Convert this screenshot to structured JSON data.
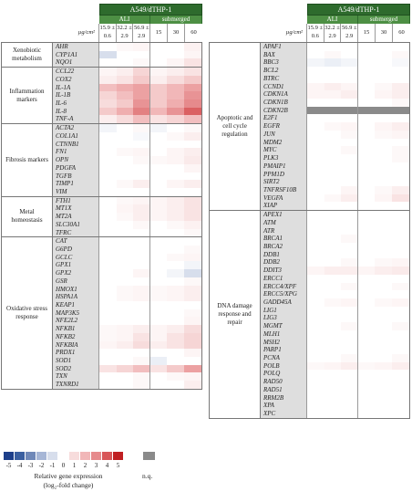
{
  "header": {
    "cell_line": "A549/dTHP-1",
    "ali_label": "ALI",
    "submerged_label": "submerged",
    "unit_label": "µg/cm²",
    "doses": [
      "15.9 ± 0.6",
      "32.2 ± 2.9",
      "56.9 ± 2.9",
      "15",
      "30",
      "60"
    ]
  },
  "colors": {
    "neg5": "#1d3f8a",
    "neg4": "#3a5fa0",
    "neg3": "#6f88b8",
    "neg2": "#a6b6d6",
    "neg1": "#d7deec",
    "zero": "#ffffff",
    "pos1": "#f7dcdc",
    "pos2": "#f1b7b8",
    "pos3": "#e68a8c",
    "pos4": "#d85658",
    "pos5": "#c01f22",
    "nq": "#8a8a8a"
  },
  "left_groups": [
    {
      "label": "Xenobiotic metabolism",
      "genes": [
        "AHR",
        "CYP1A1",
        "NQO1"
      ],
      "values": [
        [
          0,
          0.2,
          0.3,
          0,
          0,
          0.4
        ],
        [
          -1,
          0,
          0,
          0,
          0,
          0.3
        ],
        [
          0,
          0,
          0.2,
          0,
          0.3,
          0.8
        ]
      ]
    },
    {
      "label": "Inflammation markers",
      "genes": [
        "CCL22",
        "COX2",
        "IL-1A",
        "IL-1B",
        "IL-6",
        "IL-8",
        "TNF-A"
      ],
      "values": [
        [
          0.3,
          0.5,
          1.2,
          0.3,
          0.5,
          0.8
        ],
        [
          0.5,
          0.8,
          1.5,
          0.5,
          1,
          1.5
        ],
        [
          1.8,
          2.2,
          2.5,
          1.5,
          2,
          2.5
        ],
        [
          1.2,
          1.8,
          2.5,
          1.5,
          2,
          2.8
        ],
        [
          1,
          1.5,
          2.8,
          1.5,
          2.2,
          3
        ],
        [
          1.5,
          2.2,
          3.2,
          2,
          2.8,
          3.8
        ],
        [
          0.5,
          1,
          1.8,
          0.8,
          1.2,
          1.8
        ]
      ]
    },
    {
      "label": "Fibrosis markers",
      "genes": [
        "ACTA2",
        "COL1A1",
        "CTNNB1",
        "FN1",
        "OPN",
        "PDGFA",
        "TGFB",
        "TIMP1",
        "VIM"
      ],
      "values": [
        [
          -0.3,
          0,
          0.2,
          -0.3,
          0,
          0.2
        ],
        [
          0,
          0,
          -0.2,
          0,
          0.2,
          0.5
        ],
        [
          0,
          0,
          0,
          0,
          0,
          0
        ],
        [
          0,
          0.2,
          0.3,
          0,
          0.3,
          0.5
        ],
        [
          0,
          0,
          0.2,
          0.2,
          0.3,
          0.6
        ],
        [
          0,
          0,
          0,
          0,
          0,
          0.3
        ],
        [
          0,
          0,
          0,
          0,
          0,
          0
        ],
        [
          0,
          0.2,
          0.5,
          0,
          0.3,
          0.5
        ],
        [
          0,
          0,
          0,
          0,
          0,
          0
        ]
      ]
    },
    {
      "label": "Metal homeostasis",
      "genes": [
        "FTH1",
        "MT1X",
        "MT2A",
        "SLC30A1",
        "TFRC"
      ],
      "values": [
        [
          0,
          0.2,
          0.3,
          0.3,
          0.5,
          0.8
        ],
        [
          0,
          0.3,
          0.5,
          0.3,
          0.5,
          0.8
        ],
        [
          0,
          0.2,
          0.5,
          0.3,
          0.5,
          0.8
        ],
        [
          0,
          0,
          0.2,
          0,
          0.2,
          0.4
        ],
        [
          0,
          0,
          0,
          0,
          0,
          0.2
        ]
      ]
    },
    {
      "label": "Oxidative stress response",
      "genes": [
        "CAT",
        "G6PD",
        "GCLC",
        "GPX1",
        "GPX2",
        "GSR",
        "HMOX1",
        "HSPA1A",
        "KEAP1",
        "MAP3K5",
        "NFE2L2",
        "NFKB1",
        "NFKB2",
        "NFKBIA",
        "PRDX1",
        "SOD1",
        "SOD2",
        "TXN",
        "TXNRD1"
      ],
      "values": [
        [
          0,
          0,
          0,
          0,
          0,
          0
        ],
        [
          0,
          0,
          0,
          0,
          0,
          0.2
        ],
        [
          0,
          0,
          0,
          0,
          0.2,
          0.3
        ],
        [
          0,
          0,
          0,
          0,
          0,
          -0.3
        ],
        [
          0,
          0,
          0.3,
          0,
          -0.3,
          -1
        ],
        [
          0,
          0,
          0,
          0,
          0,
          0.2
        ],
        [
          0,
          0.2,
          0.3,
          0.2,
          0.3,
          0.5
        ],
        [
          0,
          0.2,
          0.3,
          0.2,
          0.3,
          0.5
        ],
        [
          0,
          0,
          0,
          0,
          0,
          0
        ],
        [
          0,
          0,
          0,
          0,
          0,
          0.2
        ],
        [
          0,
          0,
          0,
          0,
          0,
          0.3
        ],
        [
          0.2,
          0.3,
          0.5,
          0.3,
          0.5,
          1
        ],
        [
          0.2,
          0.3,
          0.8,
          0.3,
          0.8,
          1.2
        ],
        [
          0.3,
          0.5,
          1,
          0.5,
          0.8,
          1.2
        ],
        [
          0,
          0,
          0,
          0,
          0,
          0.3
        ],
        [
          0,
          0,
          0.2,
          -0.5,
          0,
          0
        ],
        [
          0.8,
          1.2,
          1.8,
          0.8,
          1.5,
          2.5
        ],
        [
          0,
          0,
          0.2,
          0,
          0.2,
          0.3
        ],
        [
          0,
          0,
          0.2,
          0,
          0,
          0.5
        ]
      ]
    }
  ],
  "right_groups": [
    {
      "label": "Apoptotic and cell cycle regulation",
      "genes": [
        "APAF1",
        "BAX",
        "BBC3",
        "BCL2",
        "BTRC",
        "CCND1",
        "CDKN1A",
        "CDKN1B",
        "CDKN2B",
        "E2F1",
        "EGFR",
        "JUN",
        "MDM2",
        "MYC",
        "PLK3",
        "PMAIP1",
        "PPM1D",
        "SIRT2",
        "TNFRSF10B",
        "VEGFA",
        "XIAP"
      ],
      "values": [
        [
          0,
          0,
          0,
          0,
          0,
          0
        ],
        [
          0,
          0.2,
          0,
          0,
          0,
          0.2
        ],
        [
          -0.3,
          -0.5,
          -0.3,
          0,
          0,
          -0.2
        ],
        [
          0,
          0,
          0,
          0,
          0,
          0
        ],
        [
          0,
          0,
          0,
          0,
          0,
          0
        ],
        [
          0.3,
          0.5,
          0.3,
          0,
          0.2,
          0.5
        ],
        [
          0.3,
          0.3,
          0.5,
          0,
          0.3,
          0.5
        ],
        [
          0,
          0,
          0,
          0,
          0,
          0.2
        ],
        [
          "nq",
          "nq",
          "nq",
          "nq",
          "nq",
          "nq"
        ],
        [
          0,
          0,
          0,
          0,
          0,
          0
        ],
        [
          0,
          0.2,
          0.3,
          0,
          0.3,
          0.5
        ],
        [
          0,
          0,
          0.2,
          0,
          0.2,
          0.3
        ],
        [
          0,
          0,
          0,
          0,
          0,
          0
        ],
        [
          0,
          0,
          0.2,
          0,
          0,
          0.2
        ],
        [
          0,
          0,
          0,
          0,
          0,
          0.2
        ],
        [
          0,
          0,
          0,
          0,
          0,
          0
        ],
        [
          0,
          0,
          0,
          0,
          0,
          0
        ],
        [
          0,
          0,
          0,
          0,
          0,
          0
        ],
        [
          0,
          0,
          0.3,
          0,
          0.2,
          0.5
        ],
        [
          0,
          0.2,
          0.5,
          0,
          0.3,
          0.8
        ],
        [
          0,
          0,
          0,
          0,
          0,
          0
        ]
      ]
    },
    {
      "label": "DNA damage response and repair",
      "genes": [
        "APEX1",
        "ATM",
        "ATR",
        "BRCA1",
        "BRCA2",
        "DDB1",
        "DDB2",
        "DDIT3",
        "ERCC1",
        "ERCC4/XPF",
        "ERCC5/XPG",
        "GADD45A",
        "LIG1",
        "LIG3",
        "MGMT",
        "MLH1",
        "MSH2",
        "PARP1",
        "PCNA",
        "POLB",
        "POLQ",
        "RAD50",
        "RAD51",
        "RRM2B",
        "XPA",
        "XPC"
      ],
      "values": [
        [
          0,
          0,
          0,
          0,
          0,
          0
        ],
        [
          0,
          0,
          0,
          0,
          0,
          0
        ],
        [
          0,
          0,
          0,
          0,
          0,
          0
        ],
        [
          0,
          0,
          0.2,
          0,
          0,
          0
        ],
        [
          0,
          0,
          0,
          0,
          0,
          0
        ],
        [
          0,
          0,
          0,
          0,
          0,
          0
        ],
        [
          0,
          0,
          0.2,
          0,
          0.2,
          0.3
        ],
        [
          0.3,
          0.5,
          0.5,
          0.3,
          0.5,
          0.6
        ],
        [
          0,
          0,
          0,
          0,
          0,
          0
        ],
        [
          0,
          0,
          0.2,
          0,
          0,
          0.2
        ],
        [
          0,
          0,
          0,
          0,
          0,
          0
        ],
        [
          0,
          0.2,
          0.3,
          0,
          0.2,
          0.3
        ],
        [
          0,
          0,
          0,
          0,
          0,
          0
        ],
        [
          0,
          0,
          0,
          0,
          0,
          0
        ],
        [
          0,
          0,
          0.2,
          0,
          0,
          0.2
        ],
        [
          0,
          0,
          0,
          0,
          0,
          0
        ],
        [
          0,
          0,
          0,
          0,
          0,
          0
        ],
        [
          0,
          0,
          0,
          0,
          0,
          0
        ],
        [
          0,
          0,
          0.2,
          0,
          0,
          0.2
        ],
        [
          0.2,
          0.3,
          0.5,
          0.2,
          0.3,
          0.5
        ],
        [
          0,
          0,
          0,
          0,
          0,
          0
        ],
        [
          0,
          0,
          0,
          0,
          0,
          0
        ],
        [
          0,
          0,
          0,
          0,
          0,
          0
        ],
        [
          0,
          0,
          0,
          0,
          0,
          0
        ],
        [
          0,
          0,
          0,
          0,
          0,
          0
        ],
        [
          0,
          0,
          0,
          0,
          0,
          0
        ]
      ]
    }
  ],
  "legend": {
    "ticks": [
      "-5",
      "-4",
      "-3",
      "-2",
      "-1",
      "0",
      "1",
      "2",
      "3",
      "4",
      "5"
    ],
    "label_line1": "Relative gene expression",
    "label_line2": "(log₂-fold change)",
    "nq_label": "n.q."
  }
}
